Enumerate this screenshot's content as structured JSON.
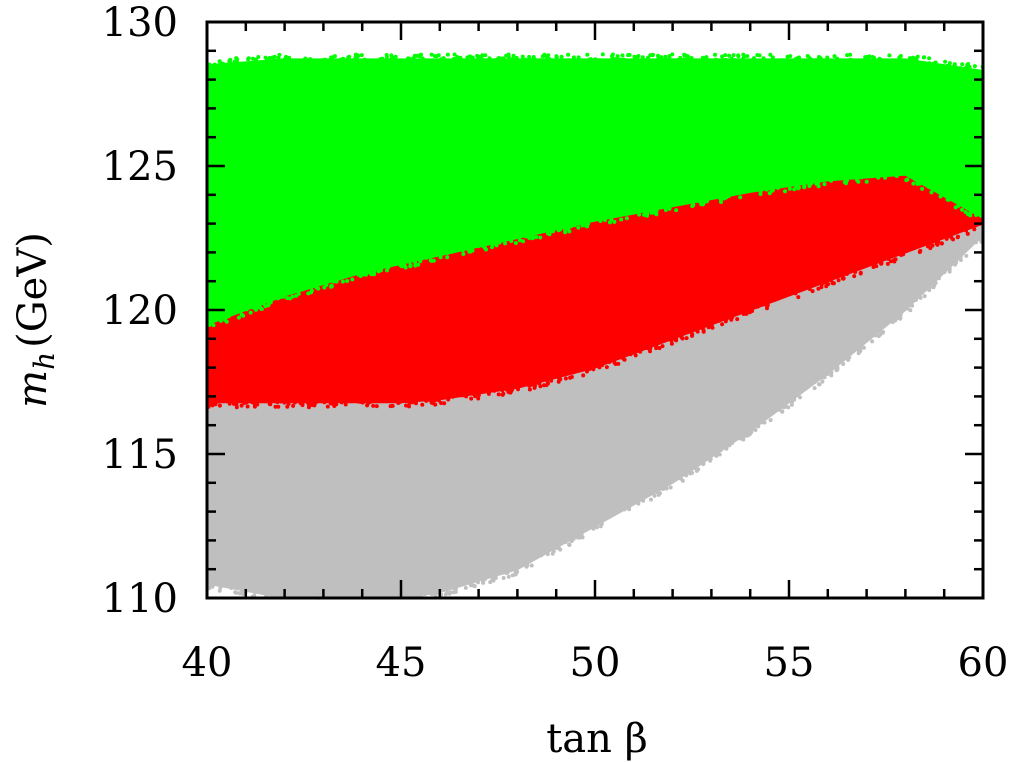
{
  "chart_data": {
    "type": "scatter",
    "xlabel": "tan β",
    "ylabel": "m_h (GeV)",
    "ylabel_parts": {
      "symbol": "m",
      "subscript": "h",
      "unit": "(GeV)"
    },
    "xlim": [
      40,
      60
    ],
    "ylim": [
      110,
      130
    ],
    "xticks": [
      40,
      45,
      50,
      55,
      60
    ],
    "yticks": [
      110,
      115,
      120,
      125,
      130
    ],
    "grid": false,
    "legend": "none",
    "series": [
      {
        "color": "#bfbfbf",
        "region": {
          "x": [
            40,
            42,
            44,
            45,
            46,
            48,
            50,
            52,
            54,
            56,
            58,
            60
          ],
          "y_min": [
            110.5,
            110.0,
            110.0,
            110.0,
            110.2,
            111.0,
            112.5,
            114.0,
            115.8,
            117.8,
            120.0,
            122.6
          ],
          "y_max": [
            117.0,
            116.9,
            116.8,
            116.8,
            116.9,
            117.3,
            118.0,
            119.0,
            120.0,
            121.0,
            122.0,
            123.0
          ]
        }
      },
      {
        "color": "#ff0000",
        "region": {
          "x": [
            40,
            42,
            44,
            45,
            46,
            48,
            50,
            52,
            54,
            56,
            58,
            60
          ],
          "y_min": [
            116.8,
            116.8,
            116.8,
            116.8,
            116.9,
            117.3,
            118.0,
            119.0,
            120.0,
            121.0,
            122.0,
            123.0
          ],
          "y_max": [
            119.5,
            120.5,
            121.3,
            121.6,
            121.9,
            122.5,
            123.1,
            123.6,
            124.1,
            124.5,
            124.7,
            124.5
          ]
        }
      },
      {
        "color": "#00ff00",
        "region": {
          "x": [
            40,
            42,
            44,
            45,
            46,
            48,
            50,
            52,
            54,
            56,
            58,
            60
          ],
          "y_min": [
            119.5,
            120.5,
            121.3,
            121.6,
            121.9,
            122.5,
            123.1,
            123.6,
            124.1,
            124.5,
            124.7,
            123.2
          ],
          "y_max": [
            128.5,
            128.7,
            128.7,
            128.7,
            128.7,
            128.7,
            128.7,
            128.7,
            128.7,
            128.7,
            128.7,
            128.3
          ]
        }
      }
    ]
  }
}
